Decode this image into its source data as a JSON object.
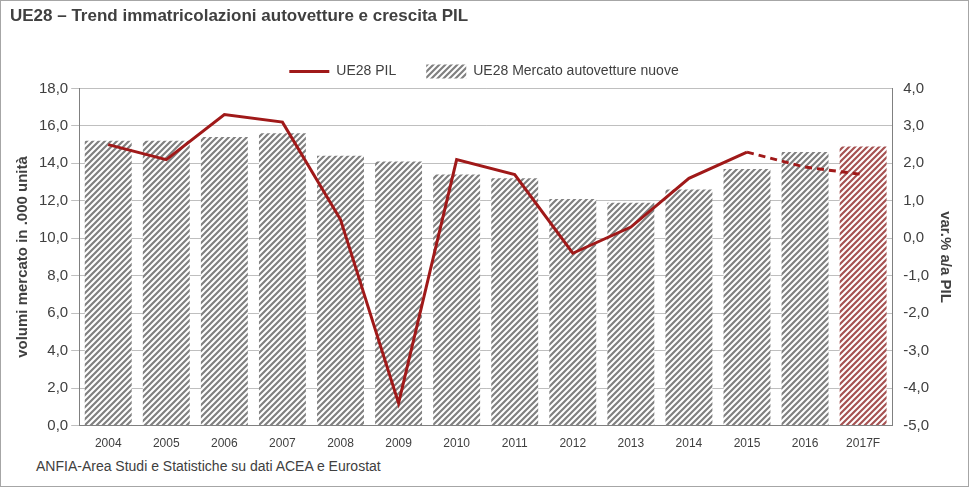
{
  "chart_data": {
    "type": "bar",
    "title": "UE28 – Trend immatricolazioni autovetture e crescita PIL",
    "source": "ANFIA-Area Studi e Statistiche su dati ACEA e Eurostat",
    "categories": [
      "2004",
      "2005",
      "2006",
      "2007",
      "2008",
      "2009",
      "2010",
      "2011",
      "2012",
      "2013",
      "2014",
      "2015",
      "2016",
      "2017F"
    ],
    "series": [
      {
        "name": "UE28 Mercato autovetture nuove",
        "type": "bar",
        "colors": [
          "#808080",
          "#808080",
          "#808080",
          "#808080",
          "#808080",
          "#808080",
          "#808080",
          "#808080",
          "#808080",
          "#808080",
          "#808080",
          "#808080",
          "#808080",
          "#a65252"
        ],
        "values": [
          15.2,
          15.2,
          15.4,
          15.6,
          14.4,
          14.1,
          13.4,
          13.2,
          12.1,
          11.9,
          12.6,
          13.7,
          14.6,
          14.9
        ]
      },
      {
        "name": "UE28 PIL",
        "type": "line",
        "color": "#a01919",
        "line_style": "solid",
        "axis": "y2",
        "values": [
          2.5,
          2.1,
          3.3,
          3.1,
          0.5,
          -4.4,
          2.1,
          1.7,
          -0.4,
          0.3,
          1.6,
          2.3,
          null,
          null
        ]
      },
      {
        "name": "UE28 PIL",
        "type": "line",
        "color": "#a01919",
        "line_style": "dashed",
        "axis": "y2",
        "values": [
          null,
          null,
          null,
          null,
          null,
          null,
          null,
          null,
          null,
          null,
          null,
          2.3,
          1.9,
          1.7
        ]
      }
    ],
    "y_label": "volumi mercato in .000 unità",
    "y2_label": "var.% a/a PIL",
    "ylim": [
      0,
      18
    ],
    "yticks": [
      {
        "value": 0,
        "label": "0,0"
      },
      {
        "value": 2,
        "label": "2,0"
      },
      {
        "value": 4,
        "label": "4,0"
      },
      {
        "value": 6,
        "label": "6,0"
      },
      {
        "value": 8,
        "label": "8,0"
      },
      {
        "value": 10,
        "label": "10,0"
      },
      {
        "value": 12,
        "label": "12,0"
      },
      {
        "value": 14,
        "label": "14,0"
      },
      {
        "value": 16,
        "label": "16,0"
      },
      {
        "value": 18,
        "label": "18,0"
      }
    ],
    "y2lim": [
      -5,
      4
    ],
    "y2ticks": [
      {
        "value": -5,
        "label": "-5,0"
      },
      {
        "value": -4,
        "label": "-4,0"
      },
      {
        "value": -3,
        "label": "-3,0"
      },
      {
        "value": -2,
        "label": "-2,0"
      },
      {
        "value": -1,
        "label": "-1,0"
      },
      {
        "value": 0,
        "label": "0,0"
      },
      {
        "value": 1,
        "label": "1,0"
      },
      {
        "value": 2,
        "label": "2,0"
      },
      {
        "value": 3,
        "label": "3,0"
      },
      {
        "value": 4,
        "label": "4,0"
      }
    ],
    "grid": true,
    "legend": "top"
  }
}
